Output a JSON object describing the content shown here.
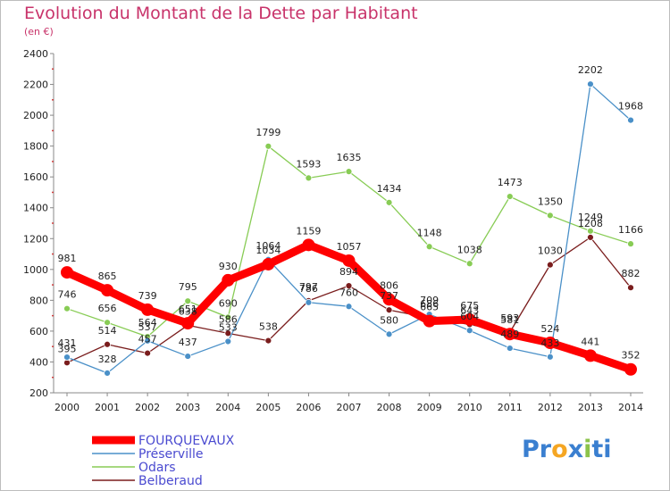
{
  "chart_data": {
    "type": "line",
    "title": "Evolution du Montant de la Dette par Habitant",
    "subtitle": "(en €)",
    "x": [
      "2000",
      "2001",
      "2002",
      "2003",
      "2004",
      "2005",
      "2006",
      "2007",
      "2008",
      "2009",
      "2010",
      "2011",
      "2012",
      "2013",
      "2014"
    ],
    "ylim": [
      200,
      2400
    ],
    "yticks": [
      200,
      400,
      600,
      800,
      1000,
      1200,
      1400,
      1600,
      1800,
      2000,
      2200,
      2400
    ],
    "grid": false,
    "legend_position": "bottom-left",
    "series": [
      {
        "name": "FOURQUEVAUX",
        "color": "#ff0000",
        "values": [
          981,
          865,
          739,
          651,
          930,
          1034,
          1159,
          1057,
          806,
          665,
          675,
          581,
          524,
          441,
          352
        ]
      },
      {
        "name": "Préserville",
        "color": "#4a90c8",
        "values": [
          431,
          328,
          537,
          437,
          533,
          1064,
          786,
          760,
          580,
          709,
          604,
          489,
          433,
          2202,
          1968
        ]
      },
      {
        "name": "Odars",
        "color": "#88cc55",
        "values": [
          746,
          656,
          564,
          795,
          690,
          1799,
          1593,
          1635,
          1434,
          1148,
          1038,
          1473,
          1350,
          1249,
          1166
        ]
      },
      {
        "name": "Belberaud",
        "color": "#7a1d1d",
        "values": [
          395,
          514,
          457,
          638,
          586,
          538,
          797,
          894,
          737,
          686,
          643,
          593,
          1030,
          1208,
          882
        ]
      }
    ]
  },
  "logo": {
    "letters": [
      "P",
      "r",
      "o",
      "x",
      "i",
      "t",
      "i"
    ],
    "colors": [
      "#3a7fd0",
      "#3a7fd0",
      "#f5a623",
      "#3a7fd0",
      "#8bc34a",
      "#3a7fd0",
      "#3a7fd0"
    ]
  }
}
